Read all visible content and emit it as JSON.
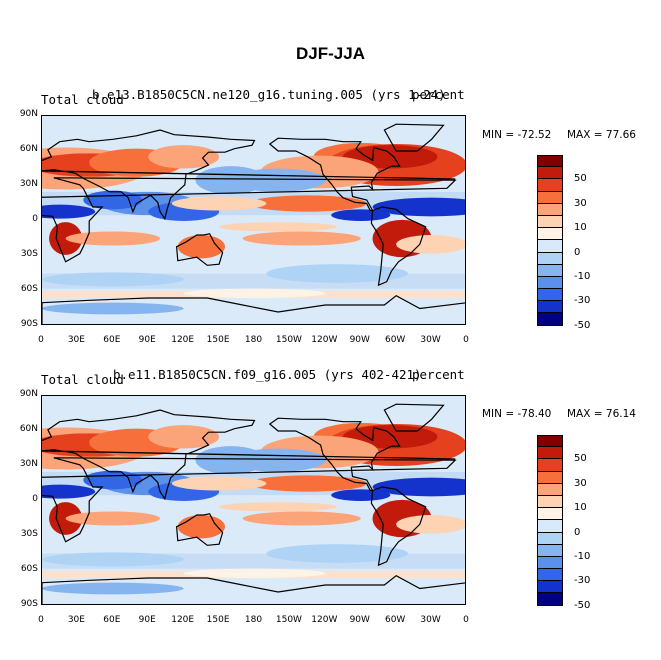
{
  "title": "DJF-JJA",
  "panels": [
    {
      "left_label": "Total cloud",
      "center_label": "b.e13.B1850C5CN.ne120_g16.tuning.005 (yrs 1-24)",
      "right_label": "percent",
      "min_text": "MIN = -72.52",
      "max_text": "MAX = 77.66"
    },
    {
      "left_label": "Total cloud",
      "center_label": "b.e11.B1850C5CN.f09_g16.005 (yrs 402-421)",
      "right_label": "percent",
      "min_text": "MIN = -78.40",
      "max_text": "MAX = 76.14"
    }
  ],
  "axes": {
    "lat_ticks": [
      "90N",
      "60N",
      "30N",
      "0",
      "30S",
      "60S",
      "90S"
    ],
    "lon_ticks": [
      "0",
      "30E",
      "60E",
      "90E",
      "120E",
      "150E",
      "180",
      "150W",
      "120W",
      "90W",
      "60W",
      "30W",
      "0"
    ]
  },
  "colorbar": {
    "labels": [
      "50",
      "30",
      "10",
      "0",
      "-10",
      "-30",
      "-50"
    ],
    "colors": [
      "#800000",
      "#c21a0b",
      "#e6411f",
      "#f7703c",
      "#fba47a",
      "#fdd3b3",
      "#fff3e8",
      "#d7e9fb",
      "#aed3f5",
      "#86b4ef",
      "#5b90eb",
      "#3366e6",
      "#1433cc",
      "#000080"
    ]
  }
}
